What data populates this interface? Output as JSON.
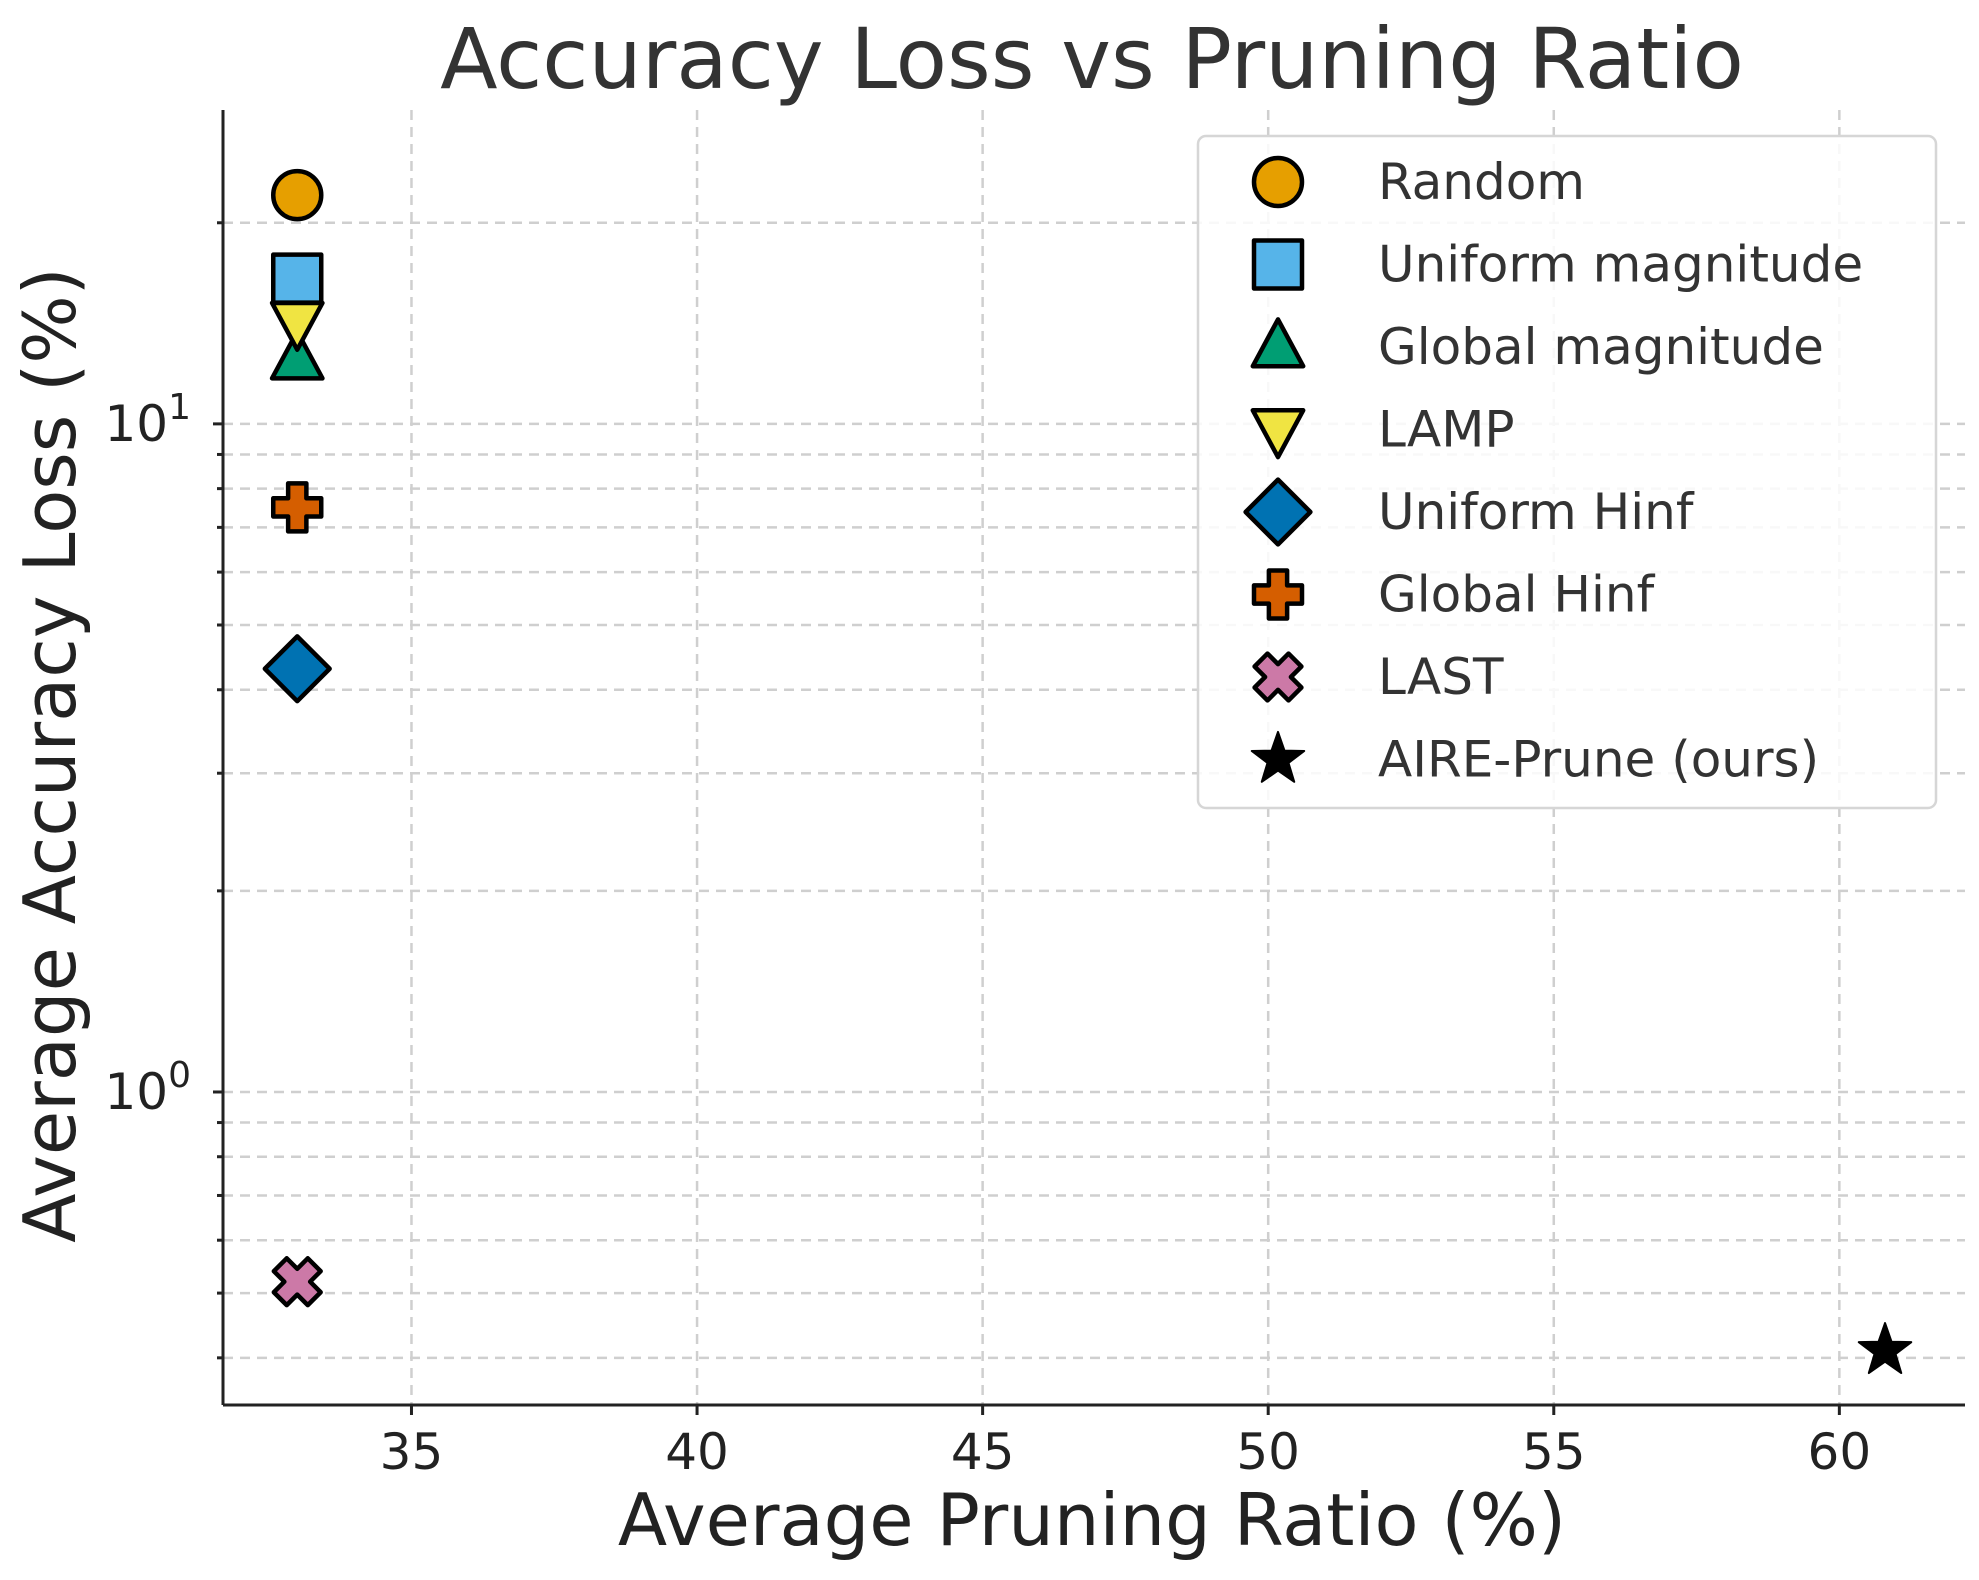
{
  "chart_data": {
    "type": "scatter",
    "title": "Accuracy Loss vs Pruning Ratio",
    "xlabel": "Average Pruning Ratio (%)",
    "ylabel": "Average Accuracy Loss (%)",
    "xlim": [
      31.7,
      62.2
    ],
    "ylim": [
      0.34,
      29.5
    ],
    "yscale": "log",
    "xticks": [
      35,
      40,
      45,
      50,
      55,
      60
    ],
    "xtick_labels": [
      "35",
      "40",
      "45",
      "50",
      "55",
      "60"
    ],
    "yticks_major": [
      1,
      10
    ],
    "ytick_major_base": "10",
    "ytick_major_exponents": [
      "0",
      "1"
    ],
    "grid": true,
    "legend_position": "top-right",
    "series": [
      {
        "name": "Random",
        "marker": "circle",
        "color": "#E69F00",
        "x": [
          33.0
        ],
        "y": [
          22.0
        ]
      },
      {
        "name": "Uniform magnitude",
        "marker": "square",
        "color": "#56B4E9",
        "x": [
          33.0
        ],
        "y": [
          16.5
        ]
      },
      {
        "name": "Global magnitude",
        "marker": "triangle-up",
        "color": "#009E73",
        "x": [
          33.0
        ],
        "y": [
          12.5
        ]
      },
      {
        "name": "LAMP",
        "marker": "triangle-down",
        "color": "#F0E442",
        "x": [
          33.0
        ],
        "y": [
          14.2
        ]
      },
      {
        "name": "Uniform Hinf",
        "marker": "diamond",
        "color": "#0072B2",
        "x": [
          33.0
        ],
        "y": [
          4.3
        ]
      },
      {
        "name": "Global Hinf",
        "marker": "plus",
        "color": "#D55E00",
        "x": [
          33.0
        ],
        "y": [
          7.5
        ]
      },
      {
        "name": "LAST",
        "marker": "x",
        "color": "#CC79A7",
        "x": [
          33.0
        ],
        "y": [
          0.52
        ]
      },
      {
        "name": "AIRE-Prune (ours)",
        "marker": "star",
        "color": "#000000",
        "x": [
          60.8
        ],
        "y": [
          0.41
        ]
      }
    ]
  }
}
